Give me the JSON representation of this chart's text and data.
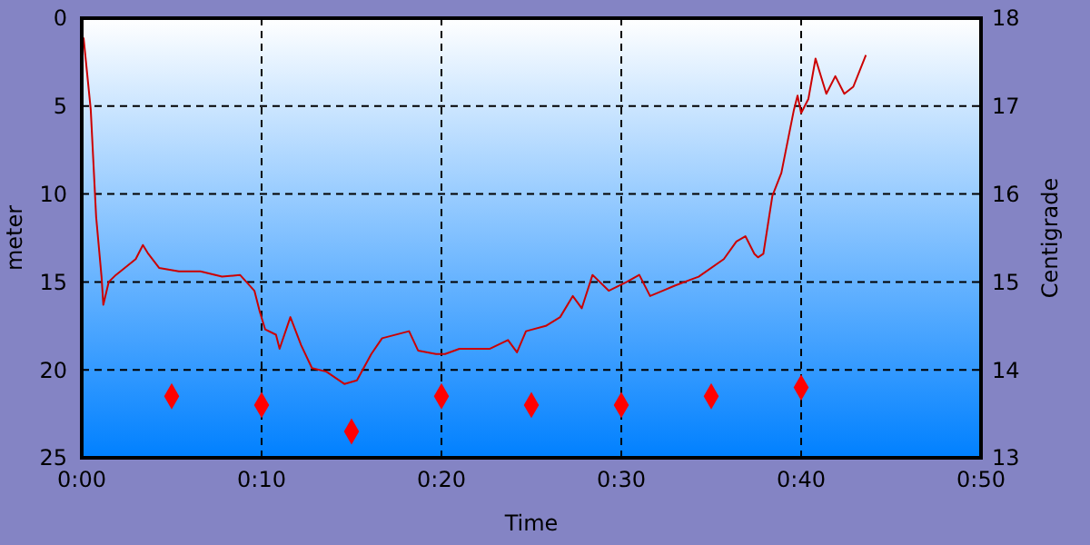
{
  "chart_data": {
    "type": "line",
    "xlabel": "Time",
    "ylabel": "meter",
    "y2label": "Centigrade",
    "xlim": [
      0,
      50
    ],
    "xticks": [
      {
        "value": 0,
        "label": "0:00"
      },
      {
        "value": 10,
        "label": "0:10"
      },
      {
        "value": 20,
        "label": "0:20"
      },
      {
        "value": 30,
        "label": "0:30"
      },
      {
        "value": 40,
        "label": "0:40"
      },
      {
        "value": 50,
        "label": "0:50"
      }
    ],
    "ylim": [
      25,
      0
    ],
    "yticks": [
      0,
      5,
      10,
      15,
      20,
      25
    ],
    "y2lim": [
      13,
      18
    ],
    "y2ticks": [
      13,
      14,
      15,
      16,
      17,
      18
    ],
    "grid": true,
    "series": [
      {
        "color": "#cc0000",
        "x": [
          0.1,
          0.5,
          0.8,
          1.1,
          1.2,
          1.5,
          1.9,
          3.0,
          3.4,
          3.7,
          4.3,
          5.4,
          6.6,
          7.8,
          8.8,
          9.6,
          9.9,
          10.2,
          10.8,
          11.0,
          11.6,
          12.2,
          12.8,
          13.6,
          14.6,
          15.3,
          16.1,
          16.7,
          18.2,
          18.7,
          19.7,
          20.2,
          21,
          22.7,
          23.7,
          24.2,
          24.7,
          25.8,
          26.6,
          27.3,
          27.8,
          28.4,
          29.3,
          30.3,
          31,
          31.6,
          32.3,
          33,
          34.3,
          35.7,
          36.4,
          36.9,
          37.4,
          37.6,
          37.9,
          38.4,
          38.9,
          39.6,
          39.8,
          40,
          40.4,
          40.8,
          41.4,
          41.9,
          42.4,
          42.9,
          43.6
        ],
        "values": [
          1.1,
          5.2,
          11.3,
          14.7,
          16.3,
          15,
          14.6,
          13.7,
          12.9,
          13.4,
          14.2,
          14.4,
          14.4,
          14.7,
          14.6,
          15.5,
          16.7,
          17.7,
          18,
          18.8,
          17,
          18.6,
          19.9,
          20.1,
          20.8,
          20.6,
          19.1,
          18.2,
          17.8,
          18.9,
          19.1,
          19.1,
          18.8,
          18.8,
          18.3,
          19,
          17.8,
          17.5,
          17,
          15.8,
          16.5,
          14.6,
          15.5,
          15,
          14.6,
          15.8,
          15.5,
          15.2,
          14.7,
          13.7,
          12.7,
          12.4,
          13.4,
          13.6,
          13.4,
          10.1,
          8.8,
          5.2,
          4.4,
          5.4,
          4.6,
          2.3,
          4.3,
          3.3,
          4.3,
          3.9,
          2.1
        ]
      },
      {
        "type": "scatter",
        "axis": "y2",
        "marker": "diamond",
        "color": "#ff0000",
        "x": [
          5,
          10,
          15,
          20,
          25,
          30,
          35,
          40
        ],
        "values": [
          13.7,
          13.6,
          13.3,
          13.7,
          13.6,
          13.6,
          13.7,
          13.8
        ]
      }
    ]
  }
}
